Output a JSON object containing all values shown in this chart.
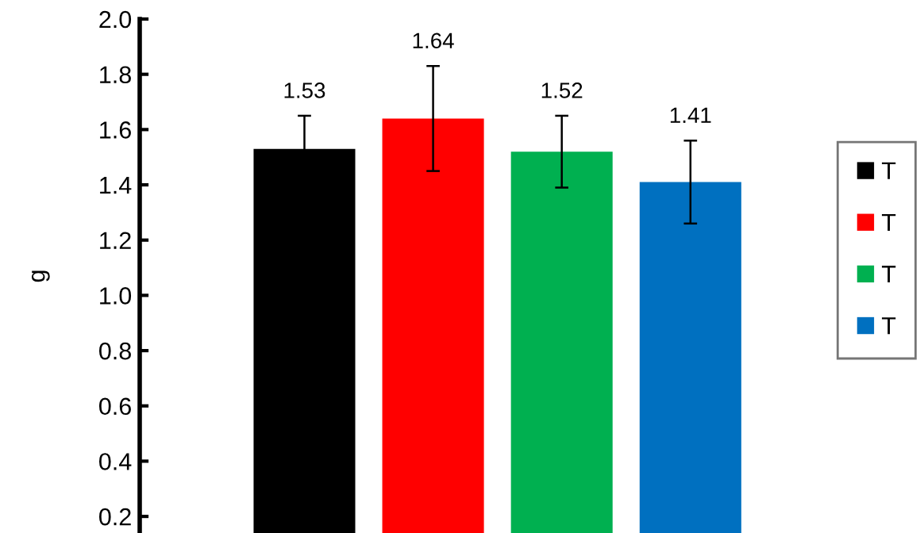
{
  "chart_data": {
    "type": "bar",
    "ylabel": "g",
    "categories": [
      null,
      null,
      null,
      null
    ],
    "series": [
      {
        "name": "T",
        "color": "#000000",
        "values": [
          1.53,
          null,
          null,
          null
        ],
        "errors": [
          0.12,
          null,
          null,
          null
        ]
      },
      {
        "name": "T",
        "color": "#ff0000",
        "values": [
          null,
          1.64,
          null,
          null
        ],
        "errors": [
          null,
          0.19,
          null,
          null
        ]
      },
      {
        "name": "T",
        "color": "#00b050",
        "values": [
          null,
          null,
          1.52,
          null
        ],
        "errors": [
          null,
          null,
          0.13,
          null
        ]
      },
      {
        "name": "T",
        "color": "#0070c0",
        "values": [
          null,
          null,
          null,
          1.41
        ],
        "errors": [
          null,
          null,
          null,
          0.15
        ]
      }
    ],
    "ylim": [
      0.14,
      2.0
    ],
    "yticks": [
      0.2,
      0.4,
      0.6,
      0.8,
      {
        "value": 1,
        "label": "1.0"
      },
      1.2,
      1.4,
      1.6,
      1.8,
      {
        "value": 2,
        "label": "2.0"
      }
    ],
    "stacked": true,
    "data_labels": true,
    "grid": false,
    "legend": "right"
  }
}
